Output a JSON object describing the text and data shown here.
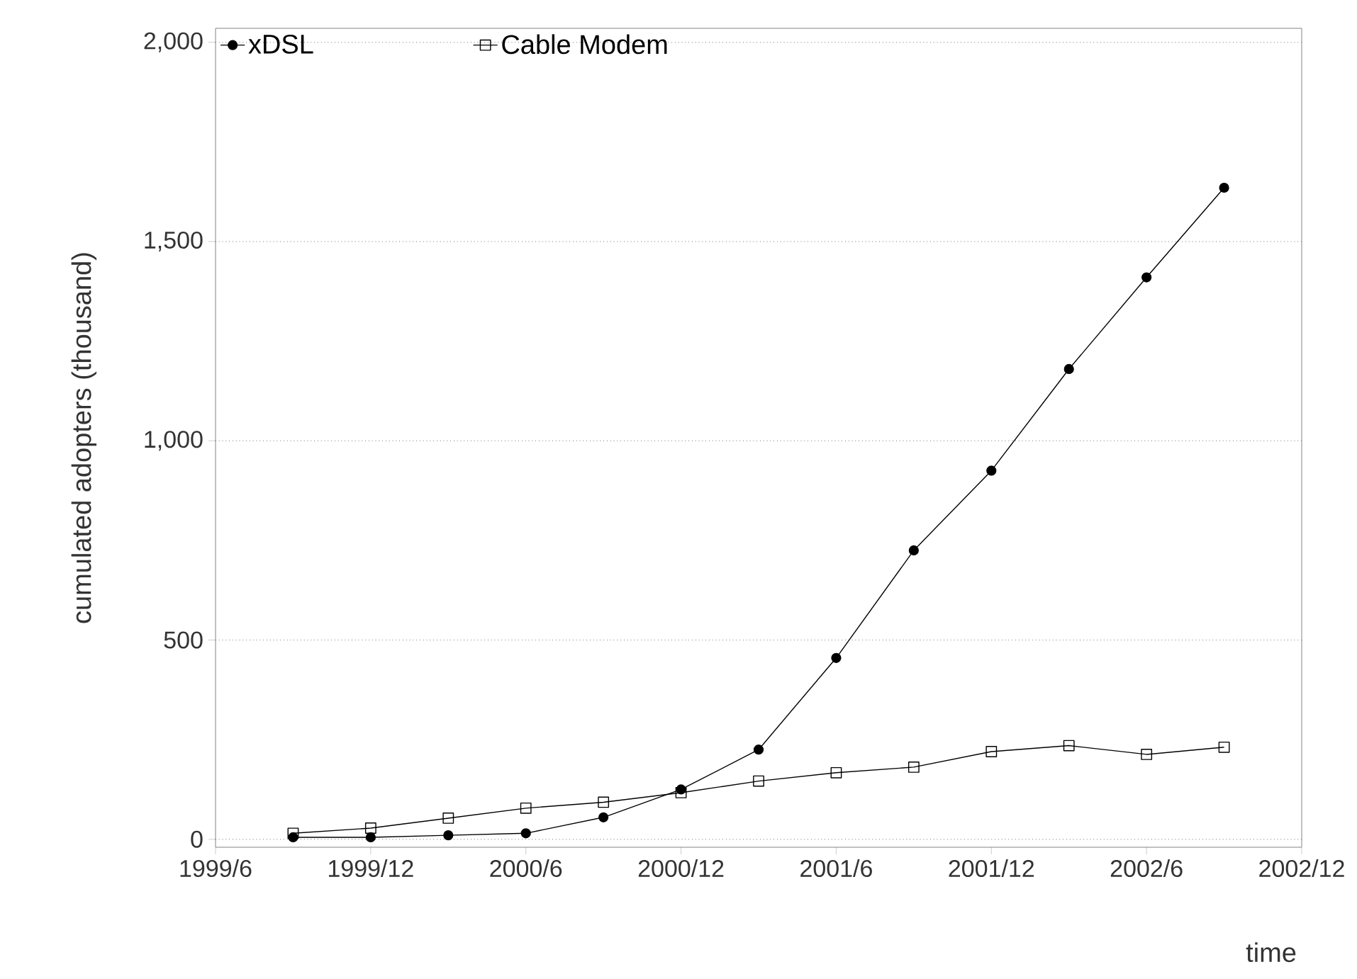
{
  "chart_data": {
    "type": "line",
    "xlabel": "time",
    "ylabel": "cumulated adopters (thousand)",
    "x": [
      "1999-09",
      "1999-12",
      "2000-03",
      "2000-06",
      "2000-09",
      "2000-12",
      "2001-03",
      "2001-06",
      "2001-09",
      "2001-12",
      "2002-03",
      "2002-06",
      "2002-09"
    ],
    "series": [
      {
        "name": "xDSL",
        "color": "#000000",
        "marker": "circle",
        "values": [
          5,
          5,
          10,
          15,
          55,
          125,
          225,
          455,
          725,
          925,
          1180,
          1410,
          1635
        ]
      },
      {
        "name": "Cable Modem",
        "color": "#000000",
        "marker": "square",
        "values": [
          15,
          28,
          53,
          78,
          93,
          117,
          146,
          167,
          181,
          220,
          235,
          213,
          231
        ]
      }
    ],
    "xlim": [
      "1999-06",
      "2002-12"
    ],
    "xticks": [
      {
        "value": "1999-06",
        "label": "1999/6"
      },
      {
        "value": "1999-12",
        "label": "1999/12"
      },
      {
        "value": "2000-06",
        "label": "2000/6"
      },
      {
        "value": "2000-12",
        "label": "2000/12"
      },
      {
        "value": "2001-06",
        "label": "2001/6"
      },
      {
        "value": "2001-12",
        "label": "2001/12"
      },
      {
        "value": "2002-06",
        "label": "2002/6"
      },
      {
        "value": "2002-12",
        "label": "2002/12"
      }
    ],
    "ylim": [
      -20,
      2035
    ],
    "yticks": [
      {
        "value": 0,
        "label": "0"
      },
      {
        "value": 500,
        "label": "500"
      },
      {
        "value": 1000,
        "label": "1,000"
      },
      {
        "value": 1500,
        "label": "1,500"
      },
      {
        "value": 2000,
        "label": "2,000"
      }
    ],
    "grid": "y",
    "legend": "top",
    "line_style": "solid"
  }
}
